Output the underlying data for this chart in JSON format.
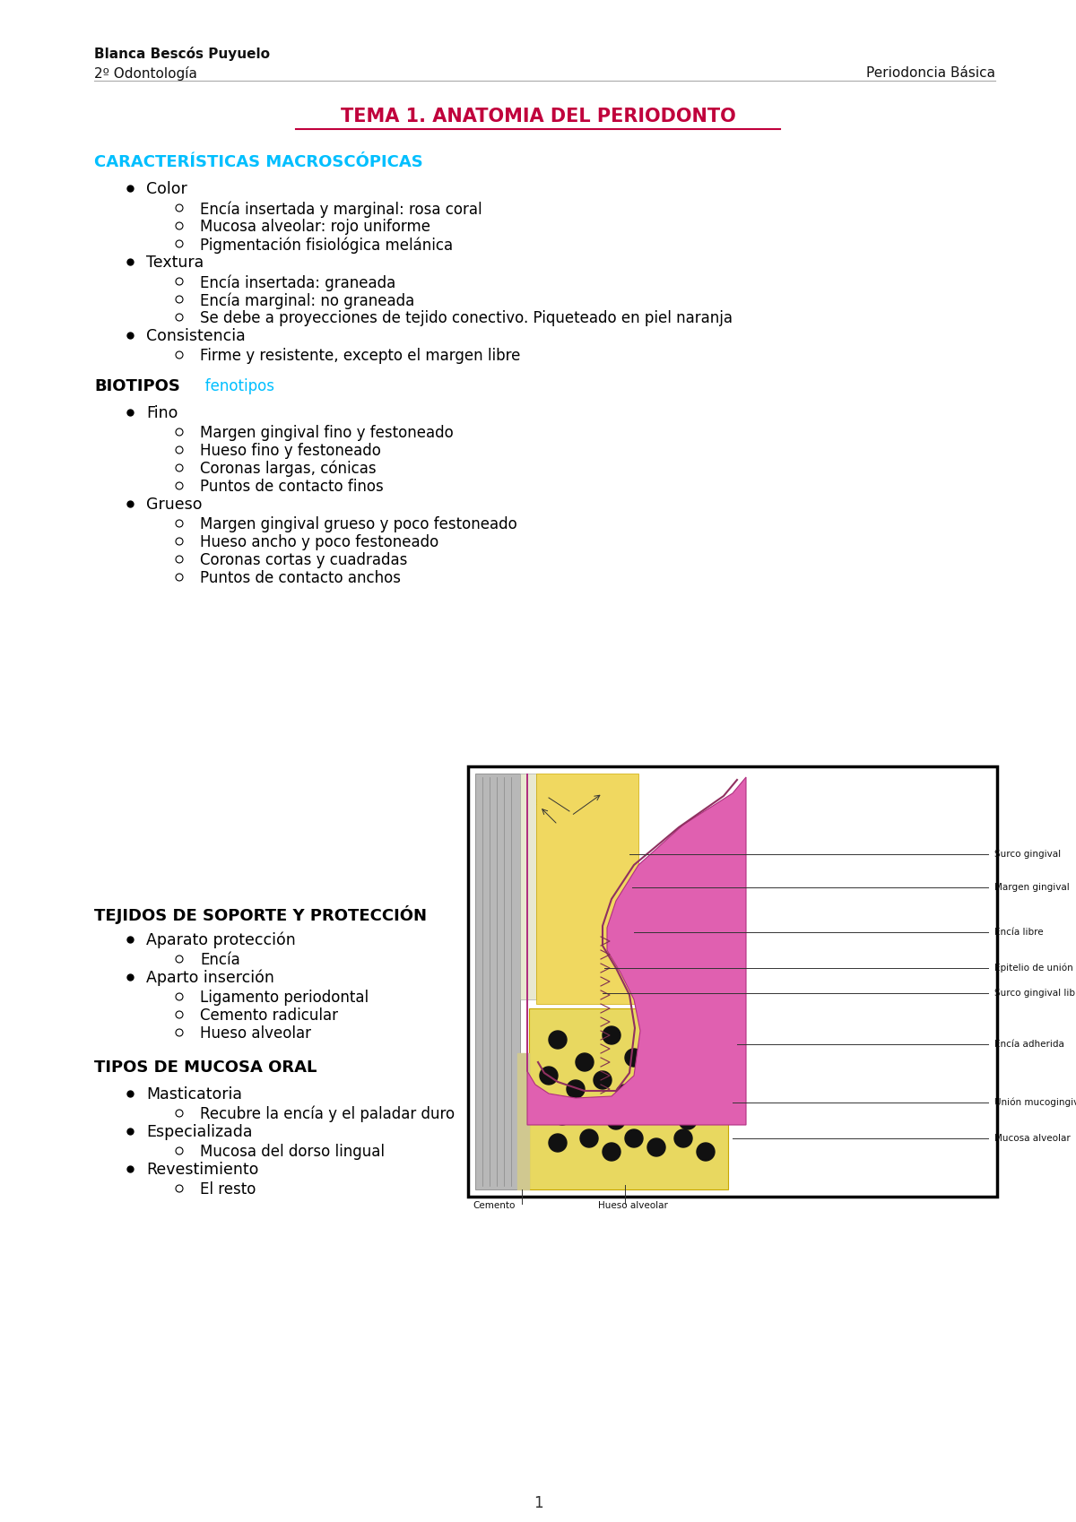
{
  "bg_color": "#ffffff",
  "header_left_line1": "Blanca Bescós Puyuelo",
  "header_left_line2": "2º Odontología",
  "header_right": "Periodoncia Básica",
  "title": "TEMA 1. ANATOMIA DEL PERIODONTO",
  "title_color": "#c0003c",
  "section1": "CARACTERÍSTICAS MACROSCÓPICAS",
  "section1_color": "#00bfff",
  "section2": "BIOTIPOS",
  "section2_color": "#000000",
  "section2_sub": "   fenotipos",
  "section2_sub_color": "#00bfff",
  "section3": "TEJIDOS DE SOPORTE Y PROTECCIÓN",
  "section3_color": "#000000",
  "section4": "TIPOS DE MUCOSA ORAL",
  "section4_color": "#000000",
  "page_number": "1",
  "content1_items": [
    {
      "level": 1,
      "text": "Color"
    },
    {
      "level": 2,
      "text": "Encía insertada y marginal: rosa coral"
    },
    {
      "level": 2,
      "text": "Mucosa alveolar: rojo uniforme"
    },
    {
      "level": 2,
      "text": "Pigmentación fisiológica melánica"
    },
    {
      "level": 1,
      "text": "Textura"
    },
    {
      "level": 2,
      "text": "Encía insertada: graneada"
    },
    {
      "level": 2,
      "text": "Encía marginal: no graneada"
    },
    {
      "level": 2,
      "text": "Se debe a proyecciones de tejido conectivo. Piqueteado en piel naranja"
    },
    {
      "level": 1,
      "text": "Consistencia"
    },
    {
      "level": 2,
      "text": "Firme y resistente, excepto el margen libre"
    }
  ],
  "content2_items": [
    {
      "level": 1,
      "text": "Fino"
    },
    {
      "level": 2,
      "text": "Margen gingival fino y festoneado"
    },
    {
      "level": 2,
      "text": "Hueso fino y festoneado"
    },
    {
      "level": 2,
      "text": "Coronas largas, cónicas"
    },
    {
      "level": 2,
      "text": "Puntos de contacto finos"
    },
    {
      "level": 1,
      "text": "Grueso"
    },
    {
      "level": 2,
      "text": "Margen gingival grueso y poco festoneado"
    },
    {
      "level": 2,
      "text": "Hueso ancho y poco festoneado"
    },
    {
      "level": 2,
      "text": "Coronas cortas y cuadradas"
    },
    {
      "level": 2,
      "text": "Puntos de contacto anchos"
    }
  ],
  "content3_items": [
    {
      "level": 1,
      "text": "Aparato protección"
    },
    {
      "level": 2,
      "text": "Encía"
    },
    {
      "level": 1,
      "text": "Aparto inserción"
    },
    {
      "level": 2,
      "text": "Ligamento periodontal"
    },
    {
      "level": 2,
      "text": "Cemento radicular"
    },
    {
      "level": 2,
      "text": "Hueso alveolar"
    }
  ],
  "content4_items": [
    {
      "level": 1,
      "text": "Masticatoria"
    },
    {
      "level": 2,
      "text": "Recubre la encía y el paladar duro"
    },
    {
      "level": 1,
      "text": "Especializada"
    },
    {
      "level": 2,
      "text": "Mucosa del dorso lingual"
    },
    {
      "level": 1,
      "text": "Revestimiento"
    },
    {
      "level": 2,
      "text": "El resto"
    }
  ],
  "img_labels_right": [
    "Surco gingival",
    "Margen gingival",
    "Encía libre",
    "Epitelio de unión",
    "Surco gingival libre",
    "Encía adherida",
    "Unión mucogingival",
    "Mucosa alveolar"
  ]
}
